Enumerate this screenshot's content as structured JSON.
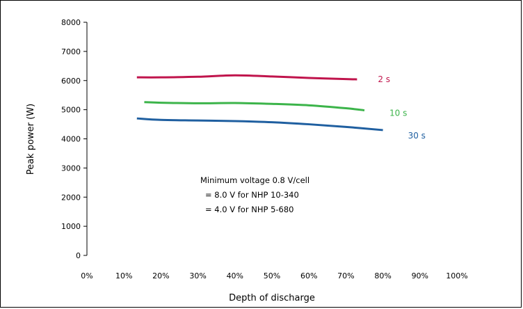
{
  "chart_data": {
    "type": "line",
    "title": "",
    "xlabel": "Depth of discharge",
    "ylabel": "Peak power (W)",
    "xlim": [
      0,
      100
    ],
    "ylim": [
      0,
      8000
    ],
    "x_ticks": [
      "0%",
      "10%",
      "20%",
      "30%",
      "40%",
      "50%",
      "60%",
      "70%",
      "80%",
      "90%",
      "100%"
    ],
    "y_ticks": [
      "0",
      "1000",
      "2000",
      "3000",
      "4000",
      "5000",
      "6000",
      "7000",
      "8000"
    ],
    "grid": false,
    "series": [
      {
        "name": "2 s",
        "color": "#c0144c",
        "x": [
          13.5,
          20,
          30,
          40,
          50,
          60,
          70,
          73
        ],
        "y": [
          6110,
          6110,
          6130,
          6180,
          6140,
          6090,
          6050,
          6040
        ]
      },
      {
        "name": "10 s",
        "color": "#3cb44a",
        "x": [
          15.5,
          20,
          30,
          40,
          50,
          60,
          70,
          75
        ],
        "y": [
          5260,
          5240,
          5220,
          5230,
          5200,
          5150,
          5050,
          4980
        ]
      },
      {
        "name": "30 s",
        "color": "#1f5fa0",
        "x": [
          13.5,
          20,
          30,
          40,
          50,
          60,
          70,
          80
        ],
        "y": [
          4700,
          4650,
          4630,
          4610,
          4570,
          4500,
          4410,
          4300
        ]
      }
    ],
    "annotation": [
      "Minimum voltage 0.8 V/cell",
      "= 8.0 V for NHP 10-340",
      "= 4.0 V for NHP 5-680"
    ]
  }
}
